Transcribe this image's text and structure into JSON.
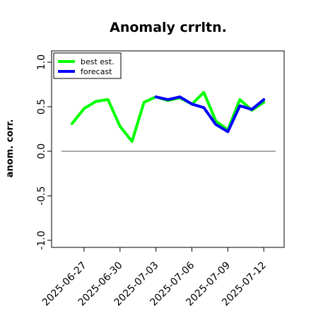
{
  "chart_data": {
    "type": "line",
    "title": "Anomaly crrltn.",
    "ylabel": "anom. corr.",
    "xlabel": "",
    "ylim": [
      -1.0,
      1.0
    ],
    "yticks": [
      "-1.0",
      "-0.5",
      "0.0",
      "0.5",
      "1.0"
    ],
    "xtick_labels": [
      "2025-06-27",
      "2025-06-30",
      "2025-07-03",
      "2025-07-06",
      "2025-07-09",
      "2025-07-12"
    ],
    "highlighted_xtick": "2025-07-03",
    "highlight_color": "#228b22",
    "reference_line": 0.0,
    "legend_position": "top-left",
    "x": [
      "2025-06-26",
      "2025-06-27",
      "2025-06-28",
      "2025-06-29",
      "2025-06-30",
      "2025-07-01",
      "2025-07-02",
      "2025-07-03",
      "2025-07-04",
      "2025-07-05",
      "2025-07-06",
      "2025-07-07",
      "2025-07-08",
      "2025-07-09",
      "2025-07-10",
      "2025-07-11",
      "2025-07-12"
    ],
    "series": [
      {
        "name": "best est.",
        "color": "#00ff00",
        "values": [
          0.31,
          0.48,
          0.56,
          0.58,
          0.28,
          0.11,
          0.55,
          0.61,
          0.57,
          0.6,
          0.53,
          0.66,
          0.34,
          0.24,
          0.58,
          0.46,
          0.55
        ]
      },
      {
        "name": "forecast",
        "color": "#0000ff",
        "values": [
          null,
          null,
          null,
          null,
          null,
          null,
          null,
          0.61,
          0.58,
          0.61,
          0.53,
          0.49,
          0.3,
          0.22,
          0.51,
          0.47,
          0.58
        ]
      }
    ]
  }
}
